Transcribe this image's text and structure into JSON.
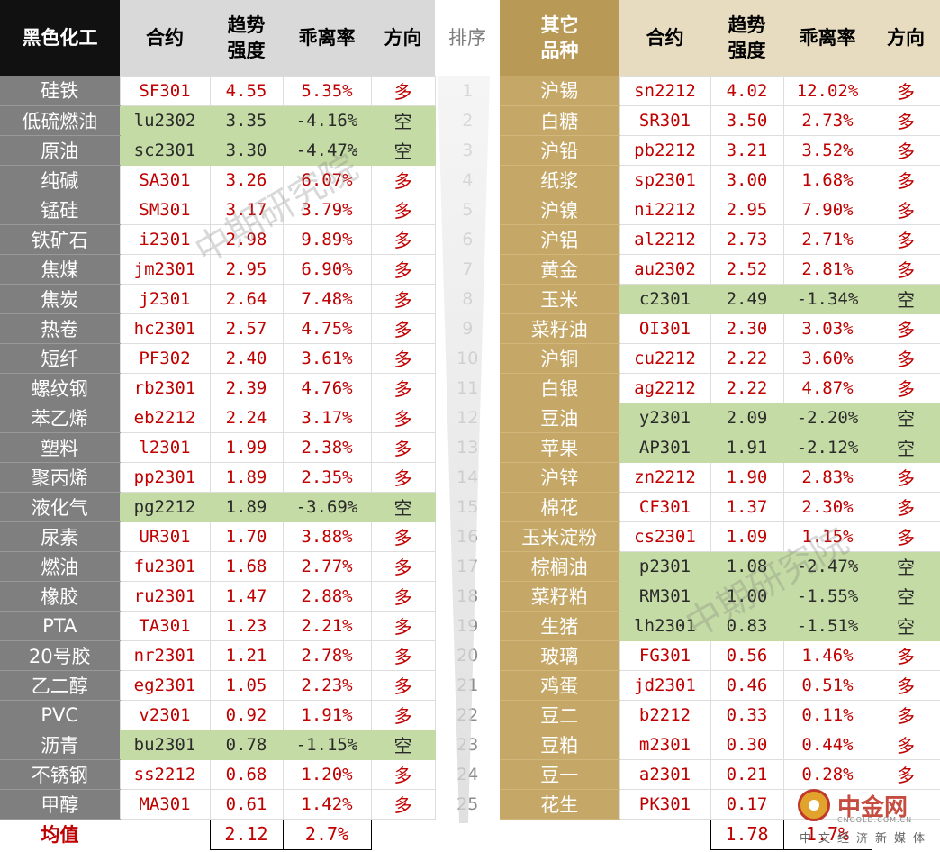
{
  "headers": {
    "left_group": "黑色化工",
    "contract": "合约",
    "trend": "趋势\n强度",
    "deviation": "乖离率",
    "direction": "方向",
    "rank": "排序",
    "right_group": "其它\n品种"
  },
  "rows": [
    {
      "rank": "1",
      "left": {
        "name": "硅铁",
        "contract": "SF301",
        "trend": "4.55",
        "deviation": "5.35%",
        "direction": "多"
      },
      "right": {
        "name": "沪锡",
        "contract": "sn2212",
        "trend": "4.02",
        "deviation": "12.02%",
        "direction": "多"
      }
    },
    {
      "rank": "2",
      "left": {
        "name": "低硫燃油",
        "contract": "lu2302",
        "trend": "3.35",
        "deviation": "-4.16%",
        "direction": "空"
      },
      "right": {
        "name": "白糖",
        "contract": "SR301",
        "trend": "3.50",
        "deviation": "2.73%",
        "direction": "多"
      }
    },
    {
      "rank": "3",
      "left": {
        "name": "原油",
        "contract": "sc2301",
        "trend": "3.30",
        "deviation": "-4.47%",
        "direction": "空"
      },
      "right": {
        "name": "沪铅",
        "contract": "pb2212",
        "trend": "3.21",
        "deviation": "3.52%",
        "direction": "多"
      }
    },
    {
      "rank": "4",
      "left": {
        "name": "纯碱",
        "contract": "SA301",
        "trend": "3.26",
        "deviation": "6.07%",
        "direction": "多"
      },
      "right": {
        "name": "纸浆",
        "contract": "sp2301",
        "trend": "3.00",
        "deviation": "1.68%",
        "direction": "多"
      }
    },
    {
      "rank": "5",
      "left": {
        "name": "锰硅",
        "contract": "SM301",
        "trend": "3.17",
        "deviation": "3.79%",
        "direction": "多"
      },
      "right": {
        "name": "沪镍",
        "contract": "ni2212",
        "trend": "2.95",
        "deviation": "7.90%",
        "direction": "多"
      }
    },
    {
      "rank": "6",
      "left": {
        "name": "铁矿石",
        "contract": "i2301",
        "trend": "2.98",
        "deviation": "9.89%",
        "direction": "多"
      },
      "right": {
        "name": "沪铝",
        "contract": "al2212",
        "trend": "2.73",
        "deviation": "2.71%",
        "direction": "多"
      }
    },
    {
      "rank": "7",
      "left": {
        "name": "焦煤",
        "contract": "jm2301",
        "trend": "2.95",
        "deviation": "6.90%",
        "direction": "多"
      },
      "right": {
        "name": "黄金",
        "contract": "au2302",
        "trend": "2.52",
        "deviation": "2.81%",
        "direction": "多"
      }
    },
    {
      "rank": "8",
      "left": {
        "name": "焦炭",
        "contract": "j2301",
        "trend": "2.64",
        "deviation": "7.48%",
        "direction": "多"
      },
      "right": {
        "name": "玉米",
        "contract": "c2301",
        "trend": "2.49",
        "deviation": "-1.34%",
        "direction": "空"
      }
    },
    {
      "rank": "9",
      "left": {
        "name": "热卷",
        "contract": "hc2301",
        "trend": "2.57",
        "deviation": "4.75%",
        "direction": "多"
      },
      "right": {
        "name": "菜籽油",
        "contract": "OI301",
        "trend": "2.30",
        "deviation": "3.03%",
        "direction": "多"
      }
    },
    {
      "rank": "10",
      "left": {
        "name": "短纤",
        "contract": "PF302",
        "trend": "2.40",
        "deviation": "3.61%",
        "direction": "多"
      },
      "right": {
        "name": "沪铜",
        "contract": "cu2212",
        "trend": "2.22",
        "deviation": "3.60%",
        "direction": "多"
      }
    },
    {
      "rank": "11",
      "left": {
        "name": "螺纹钢",
        "contract": "rb2301",
        "trend": "2.39",
        "deviation": "4.76%",
        "direction": "多"
      },
      "right": {
        "name": "白银",
        "contract": "ag2212",
        "trend": "2.22",
        "deviation": "4.87%",
        "direction": "多"
      }
    },
    {
      "rank": "12",
      "left": {
        "name": "苯乙烯",
        "contract": "eb2212",
        "trend": "2.24",
        "deviation": "3.17%",
        "direction": "多"
      },
      "right": {
        "name": "豆油",
        "contract": "y2301",
        "trend": "2.09",
        "deviation": "-2.20%",
        "direction": "空"
      }
    },
    {
      "rank": "13",
      "left": {
        "name": "塑料",
        "contract": "l2301",
        "trend": "1.99",
        "deviation": "2.38%",
        "direction": "多"
      },
      "right": {
        "name": "苹果",
        "contract": "AP301",
        "trend": "1.91",
        "deviation": "-2.12%",
        "direction": "空"
      }
    },
    {
      "rank": "14",
      "left": {
        "name": "聚丙烯",
        "contract": "pp2301",
        "trend": "1.89",
        "deviation": "2.35%",
        "direction": "多"
      },
      "right": {
        "name": "沪锌",
        "contract": "zn2212",
        "trend": "1.90",
        "deviation": "2.83%",
        "direction": "多"
      }
    },
    {
      "rank": "15",
      "left": {
        "name": "液化气",
        "contract": "pg2212",
        "trend": "1.89",
        "deviation": "-3.69%",
        "direction": "空"
      },
      "right": {
        "name": "棉花",
        "contract": "CF301",
        "trend": "1.37",
        "deviation": "2.30%",
        "direction": "多"
      }
    },
    {
      "rank": "16",
      "left": {
        "name": "尿素",
        "contract": "UR301",
        "trend": "1.70",
        "deviation": "3.88%",
        "direction": "多"
      },
      "right": {
        "name": "玉米淀粉",
        "contract": "cs2301",
        "trend": "1.09",
        "deviation": "1.15%",
        "direction": "多"
      }
    },
    {
      "rank": "17",
      "left": {
        "name": "燃油",
        "contract": "fu2301",
        "trend": "1.68",
        "deviation": "2.77%",
        "direction": "多"
      },
      "right": {
        "name": "棕榈油",
        "contract": "p2301",
        "trend": "1.08",
        "deviation": "-2.47%",
        "direction": "空"
      }
    },
    {
      "rank": "18",
      "left": {
        "name": "橡胶",
        "contract": "ru2301",
        "trend": "1.47",
        "deviation": "2.88%",
        "direction": "多"
      },
      "right": {
        "name": "菜籽粕",
        "contract": "RM301",
        "trend": "1.00",
        "deviation": "-1.55%",
        "direction": "空"
      }
    },
    {
      "rank": "19",
      "left": {
        "name": "PTA",
        "contract": "TA301",
        "trend": "1.23",
        "deviation": "2.21%",
        "direction": "多"
      },
      "right": {
        "name": "生猪",
        "contract": "lh2301",
        "trend": "0.83",
        "deviation": "-1.51%",
        "direction": "空"
      }
    },
    {
      "rank": "20",
      "left": {
        "name": "20号胶",
        "contract": "nr2301",
        "trend": "1.21",
        "deviation": "2.78%",
        "direction": "多"
      },
      "right": {
        "name": "玻璃",
        "contract": "FG301",
        "trend": "0.56",
        "deviation": "1.46%",
        "direction": "多"
      }
    },
    {
      "rank": "21",
      "left": {
        "name": "乙二醇",
        "contract": "eg2301",
        "trend": "1.05",
        "deviation": "2.23%",
        "direction": "多"
      },
      "right": {
        "name": "鸡蛋",
        "contract": "jd2301",
        "trend": "0.46",
        "deviation": "0.51%",
        "direction": "多"
      }
    },
    {
      "rank": "22",
      "left": {
        "name": "PVC",
        "contract": "v2301",
        "trend": "0.92",
        "deviation": "1.91%",
        "direction": "多"
      },
      "right": {
        "name": "豆二",
        "contract": "b2212",
        "trend": "0.33",
        "deviation": "0.11%",
        "direction": "多"
      }
    },
    {
      "rank": "23",
      "left": {
        "name": "沥青",
        "contract": "bu2301",
        "trend": "0.78",
        "deviation": "-1.15%",
        "direction": "空"
      },
      "right": {
        "name": "豆粕",
        "contract": "m2301",
        "trend": "0.30",
        "deviation": "0.44%",
        "direction": "多"
      }
    },
    {
      "rank": "24",
      "left": {
        "name": "不锈钢",
        "contract": "ss2212",
        "trend": "0.68",
        "deviation": "1.20%",
        "direction": "多"
      },
      "right": {
        "name": "豆一",
        "contract": "a2301",
        "trend": "0.21",
        "deviation": "0.28%",
        "direction": "多"
      }
    },
    {
      "rank": "25",
      "left": {
        "name": "甲醇",
        "contract": "MA301",
        "trend": "0.61",
        "deviation": "1.42%",
        "direction": "多"
      },
      "right": {
        "name": "花生",
        "contract": "PK301",
        "trend": "0.17",
        "deviation": "",
        "direction": ""
      }
    }
  ],
  "average": {
    "label": "均值",
    "left_trend": "2.12",
    "left_deviation": "2.7%",
    "right_trend": "1.78",
    "right_deviation": "1.7%"
  },
  "watermark": "中期研究院",
  "brand": {
    "name": "中金网",
    "url": "CNGOLD.COM.CN",
    "tagline": "中文经济新媒体"
  },
  "colors": {
    "long_text": "#c00000",
    "short_highlight": "#c5dba5",
    "left_name_bg": "#7f7f7f",
    "right_name_bg": "#c5a867",
    "left_header_bg": "#111111",
    "right_header_bg": "#b89a56"
  }
}
